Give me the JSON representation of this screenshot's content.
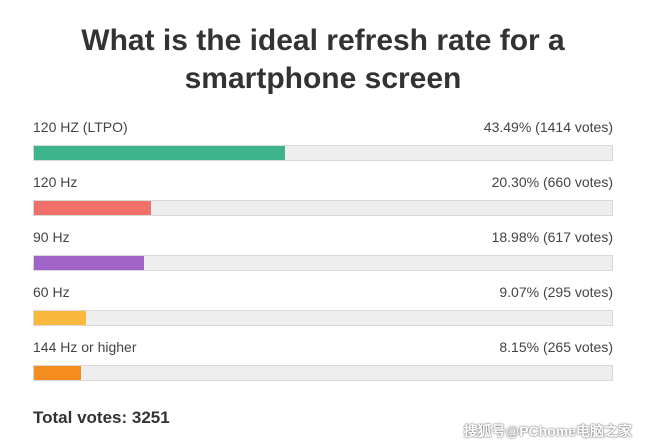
{
  "chart_data": {
    "type": "bar",
    "orientation": "horizontal",
    "title": "What is the ideal refresh rate for a smartphone screen",
    "categories": [
      "120 HZ (LTPO)",
      "120 Hz",
      "90 Hz",
      "60 Hz",
      "144 Hz or higher"
    ],
    "values": [
      43.49,
      20.3,
      18.98,
      9.07,
      8.15
    ],
    "votes": [
      1414,
      660,
      617,
      295,
      265
    ],
    "value_labels": [
      "43.49% (1414 votes)",
      "20.30% (660 votes)",
      "18.98% (617 votes)",
      "9.07% (295 votes)",
      "8.15% (265 votes)"
    ],
    "colors": [
      "#3db48b",
      "#f0706a",
      "#a064c8",
      "#fab93c",
      "#f58c1e"
    ],
    "xlim": [
      0,
      100
    ],
    "grid": false,
    "total_label": "Total votes: 3251"
  },
  "watermark": "搜狐号@PChome电脑之家"
}
